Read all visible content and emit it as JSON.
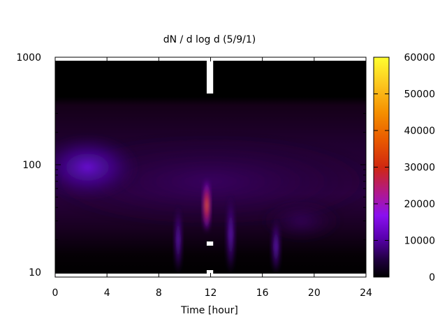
{
  "chart_data": {
    "type": "heatmap",
    "title": "dN / d log d (5/9/1)",
    "xlabel": "Time [hour]",
    "ylabel": "",
    "xlim": [
      0,
      24
    ],
    "ylim": [
      9,
      1000
    ],
    "y_scale": "log",
    "x_ticks": [
      0,
      4,
      8,
      12,
      16,
      20,
      24
    ],
    "x_tick_labels": [
      "0",
      "4",
      "8",
      "12",
      "16",
      "20",
      "24"
    ],
    "y_ticks": [
      10,
      100,
      1000
    ],
    "y_tick_labels": [
      "10",
      "100",
      "1000"
    ],
    "colorbar": {
      "range": [
        0,
        60000
      ],
      "ticks": [
        0,
        10000,
        20000,
        30000,
        40000,
        50000,
        60000
      ],
      "tick_labels": [
        "0",
        "10000",
        "20000",
        "30000",
        "40000",
        "50000",
        "60000"
      ],
      "colormap": [
        "#000000",
        "#2a004a",
        "#7a00d8",
        "#b5179e",
        "#d83000",
        "#f08000",
        "#ffe020",
        "#ffff40"
      ]
    },
    "features": [
      {
        "x": [
          0,
          5
        ],
        "y": [
          50,
          180
        ],
        "value": 12000
      },
      {
        "x": [
          11.5,
          11.9
        ],
        "y": [
          25,
          70
        ],
        "value": 38000
      },
      {
        "x": [
          9.3,
          9.7
        ],
        "y": [
          10,
          40
        ],
        "value": 10000
      },
      {
        "x": [
          13.3,
          13.8
        ],
        "y": [
          10,
          50
        ],
        "value": 9000
      },
      {
        "x": [
          16.8,
          17.3
        ],
        "y": [
          10,
          30
        ],
        "value": 7000
      }
    ],
    "missing_data_x": [
      11.7,
      12.2
    ],
    "grid": false
  }
}
